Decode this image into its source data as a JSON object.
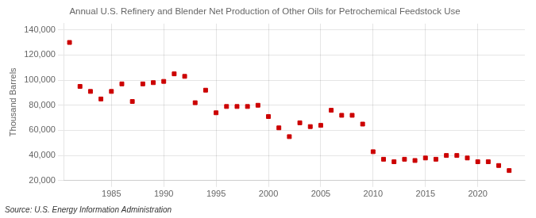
{
  "chart_data": {
    "type": "scatter",
    "title": "Annual U.S. Refinery and Blender Net Production of Other Oils for Petrochemical Feedstock Use",
    "ylabel": "Thousand Barrels",
    "source": "Source: U.S. Energy Information Administration",
    "x": [
      1981,
      1982,
      1983,
      1984,
      1985,
      1986,
      1987,
      1988,
      1989,
      1990,
      1991,
      1992,
      1993,
      1994,
      1995,
      1996,
      1997,
      1998,
      1999,
      2000,
      2001,
      2002,
      2003,
      2004,
      2005,
      2006,
      2007,
      2008,
      2009,
      2010,
      2011,
      2012,
      2013,
      2014,
      2015,
      2016,
      2017,
      2018,
      2019,
      2020,
      2021,
      2022,
      2023
    ],
    "values": [
      130000,
      95000,
      91000,
      85000,
      91000,
      97000,
      83000,
      97000,
      98000,
      99000,
      105000,
      103000,
      82000,
      92000,
      74000,
      79000,
      79000,
      79000,
      80000,
      71000,
      62000,
      55000,
      66000,
      63000,
      64000,
      76000,
      72000,
      72000,
      65000,
      43000,
      37000,
      35000,
      37000,
      36000,
      38000,
      37000,
      40000,
      40000,
      38000,
      35000,
      35000,
      32000,
      28000
    ],
    "color": "#cc0000",
    "marker": "square",
    "xlim": [
      1980.5,
      2024.5
    ],
    "xticks": [
      1985,
      1990,
      1995,
      2000,
      2005,
      2010,
      2015,
      2020
    ],
    "ylim": [
      20000,
      145000
    ],
    "yticks": [
      {
        "value": 20000,
        "label": "20,000"
      },
      {
        "value": 40000,
        "label": "40,000"
      },
      {
        "value": 60000,
        "label": "60,000"
      },
      {
        "value": 80000,
        "label": "80,000"
      },
      {
        "value": 100000,
        "label": "100,000"
      },
      {
        "value": 120000,
        "label": "120,000"
      },
      {
        "value": 140000,
        "label": "140,000"
      }
    ],
    "grid": true
  }
}
